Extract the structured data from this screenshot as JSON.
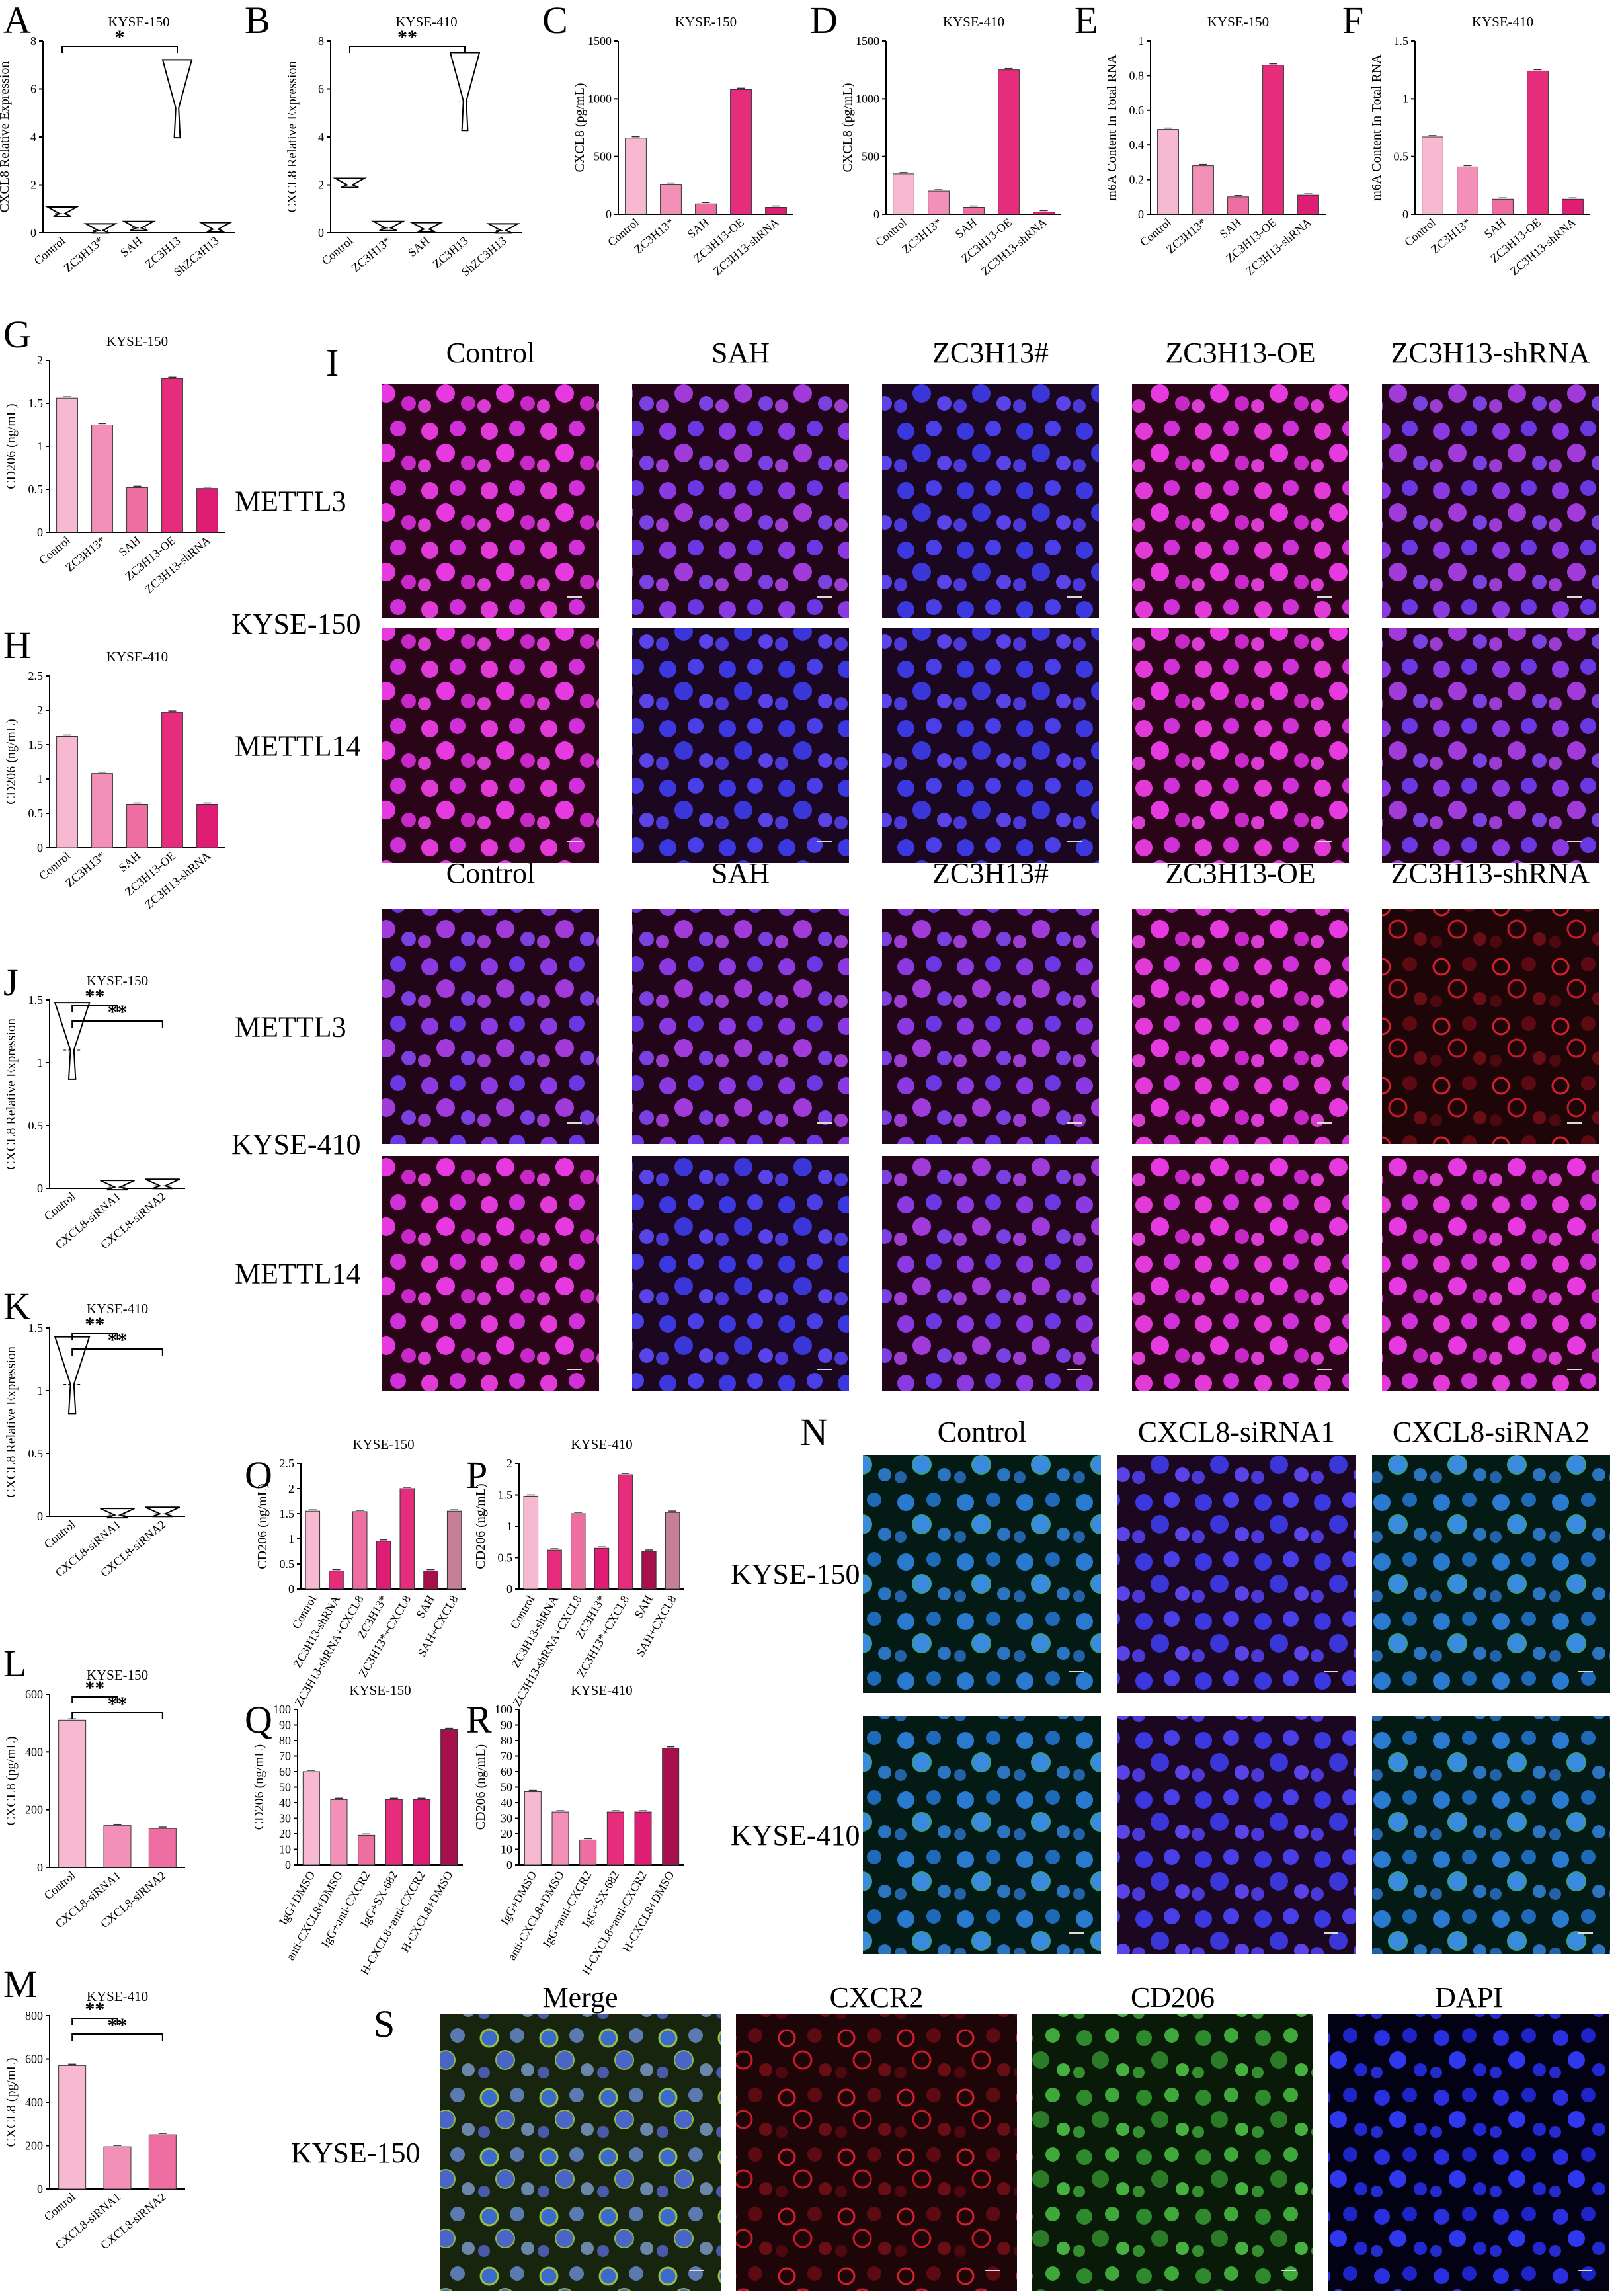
{
  "figure": {
    "background": "#ffffff"
  },
  "colors": {
    "control": "#f7b8d2",
    "pink2": "#f390b8",
    "pink3": "#ee6ea2",
    "pink_hot": "#e62d7b",
    "magenta": "#e01d74",
    "dark_rose": "#a8104d",
    "mauve": "#c58098",
    "micro_bg": "#2a0510",
    "nucleus_blue": "#3a3ae8",
    "nucleus_magenta": "#e63ad6",
    "membrane_red": "#e8202a",
    "fitc_green": "#3fbf4a"
  },
  "chart_data": [
    {
      "id": "A",
      "type": "violin",
      "title": "KYSE-150",
      "ylabel": "CXCL8 Relative Expression",
      "categories": [
        "Control",
        "ZC3H13*",
        "SAH",
        "ZC3H13",
        "ShZC3H13"
      ],
      "values": [
        0.8,
        0.1,
        0.2,
        5.2,
        0.15
      ],
      "ylim": [
        0,
        8
      ],
      "yticks": [
        0,
        2,
        4,
        6,
        8
      ],
      "significance": [
        {
          "from": 0,
          "to": 3,
          "label": "*"
        }
      ]
    },
    {
      "id": "B",
      "type": "violin",
      "title": "KYSE-410",
      "ylabel": "CXCL8 Relative Expression",
      "categories": [
        "Control",
        "ZC3H13*",
        "SAH",
        "ZC3H13",
        "ShZC3H13"
      ],
      "values": [
        2.0,
        0.2,
        0.15,
        5.5,
        0.1
      ],
      "ylim": [
        0,
        8
      ],
      "yticks": [
        0,
        2,
        4,
        6,
        8
      ],
      "significance": [
        {
          "from": 0,
          "to": 3,
          "label": "**"
        }
      ]
    },
    {
      "id": "C",
      "type": "bar",
      "title": "KYSE-150",
      "ylabel": "CXCL8 (pg/mL)",
      "categories": [
        "Control",
        "ZC3H13*",
        "SAH",
        "ZC3H13-OE",
        "ZC3H13-shRNA"
      ],
      "values": [
        660,
        260,
        90,
        1080,
        60
      ],
      "ylim": [
        0,
        1500
      ],
      "yticks": [
        0,
        500,
        1000,
        1500
      ]
    },
    {
      "id": "D",
      "type": "bar",
      "title": "KYSE-410",
      "ylabel": "CXCL8 (pg/mL)",
      "categories": [
        "Control",
        "ZC3H13*",
        "SAH",
        "ZC3H13-OE",
        "ZC3H13-shRNA"
      ],
      "values": [
        350,
        200,
        60,
        1250,
        20
      ],
      "ylim": [
        0,
        1500
      ],
      "yticks": [
        0,
        500,
        1000,
        1500
      ]
    },
    {
      "id": "E",
      "type": "bar",
      "title": "KYSE-150",
      "ylabel": "m6A Content In Total RNA",
      "categories": [
        "Control",
        "ZC3H13*",
        "SAH",
        "ZC3H13-OE",
        "ZC3H13-shRNA"
      ],
      "values": [
        0.49,
        0.28,
        0.1,
        0.86,
        0.11
      ],
      "ylim": [
        0,
        1.0
      ],
      "yticks": [
        0.0,
        0.2,
        0.4,
        0.6,
        0.8,
        1.0
      ]
    },
    {
      "id": "F",
      "type": "bar",
      "title": "KYSE-410",
      "ylabel": "m6A Content In Total RNA",
      "categories": [
        "Control",
        "ZC3H13*",
        "SAH",
        "ZC3H13-OE",
        "ZC3H13-shRNA"
      ],
      "values": [
        0.67,
        0.41,
        0.13,
        1.24,
        0.13
      ],
      "ylim": [
        0,
        1.5
      ],
      "yticks": [
        0.0,
        0.5,
        1.0,
        1.5
      ]
    },
    {
      "id": "G",
      "type": "bar",
      "title": "KYSE-150",
      "ylabel": "CD206 (ng/mL)",
      "categories": [
        "Control",
        "ZC3H13*",
        "SAH",
        "ZC3H13-OE",
        "ZC3H13-shRNA"
      ],
      "values": [
        1.56,
        1.25,
        0.52,
        1.79,
        0.51
      ],
      "ylim": [
        0,
        2.0
      ],
      "yticks": [
        0.0,
        0.5,
        1.0,
        1.5,
        2.0
      ]
    },
    {
      "id": "H",
      "type": "bar",
      "title": "KYSE-410",
      "ylabel": "CD206 (ng/mL)",
      "categories": [
        "Control",
        "ZC3H13*",
        "SAH",
        "ZC3H13-OE",
        "ZC3H13-shRNA"
      ],
      "values": [
        1.62,
        1.08,
        0.63,
        1.97,
        0.63
      ],
      "ylim": [
        0,
        2.5
      ],
      "yticks": [
        0.0,
        0.5,
        1.0,
        1.5,
        2.0,
        2.5
      ]
    },
    {
      "id": "J",
      "type": "violin",
      "title": "KYSE-150",
      "ylabel": "CXCL8 Relative Expression",
      "categories": [
        "Control",
        "CXCL8-siRNA1",
        "CXCL8-siRNA2"
      ],
      "values": [
        1.1,
        0.01,
        0.02
      ],
      "ylim": [
        0,
        1.5
      ],
      "yticks": [
        0.0,
        0.5,
        1.0,
        1.5
      ],
      "significance": [
        {
          "from": 0,
          "to": 1,
          "label": "**"
        },
        {
          "from": 0,
          "to": 2,
          "label": "**"
        }
      ]
    },
    {
      "id": "K",
      "type": "violin",
      "title": "KYSE-410",
      "ylabel": "CXCL8 Relative Expression",
      "categories": [
        "Control",
        "CXCL8-siRNA1",
        "CXCL8-siRNA2"
      ],
      "values": [
        1.05,
        0.01,
        0.02
      ],
      "ylim": [
        0,
        1.5
      ],
      "yticks": [
        0.0,
        0.5,
        1.0,
        1.5
      ],
      "significance": [
        {
          "from": 0,
          "to": 1,
          "label": "**"
        },
        {
          "from": 0,
          "to": 2,
          "label": "**"
        }
      ]
    },
    {
      "id": "L",
      "type": "bar",
      "title": "KYSE-150",
      "ylabel": "CXCL8 (pg/mL)",
      "categories": [
        "Control",
        "CXCL8-siRNA1",
        "CXCL8-siRNA2"
      ],
      "values": [
        510,
        145,
        135
      ],
      "ylim": [
        0,
        600
      ],
      "yticks": [
        0,
        200,
        400,
        600
      ],
      "significance": [
        {
          "from": 0,
          "to": 1,
          "label": "**"
        },
        {
          "from": 0,
          "to": 2,
          "label": "**"
        }
      ]
    },
    {
      "id": "M",
      "type": "bar",
      "title": "KYSE-410",
      "ylabel": "CXCL8 (pg/mL)",
      "categories": [
        "Control",
        "CXCL8-siRNA1",
        "CXCL8-siRNA2"
      ],
      "values": [
        570,
        195,
        250
      ],
      "ylim": [
        0,
        800
      ],
      "yticks": [
        0,
        200,
        400,
        600,
        800
      ],
      "significance": [
        {
          "from": 0,
          "to": 1,
          "label": "**"
        },
        {
          "from": 0,
          "to": 2,
          "label": "**"
        }
      ]
    },
    {
      "id": "O",
      "type": "bar",
      "title": "KYSE-150",
      "ylabel": "CD206 (ng/mL)",
      "categories": [
        "Control",
        "ZC3H13-shRNA",
        "ZC3H13-shRNA+CXCL8",
        "ZC3H13*",
        "ZC3H13*+CXCL8",
        "SAH",
        "SAH+CXCL8"
      ],
      "values": [
        1.55,
        0.36,
        1.54,
        0.95,
        2.0,
        0.36,
        1.55
      ],
      "ylim": [
        0,
        2.5
      ],
      "yticks": [
        0.0,
        0.5,
        1.0,
        1.5,
        2.0,
        2.5
      ]
    },
    {
      "id": "P",
      "type": "bar",
      "title": "KYSE-410",
      "ylabel": "CD206 (ng/mL)",
      "categories": [
        "Control",
        "ZC3H13-shRNA",
        "ZC3H13-shRNA+CXCL8",
        "ZC3H13*",
        "ZC3H13*+CXCL8",
        "SAH",
        "SAH+CXCL8"
      ],
      "values": [
        1.48,
        0.62,
        1.2,
        0.65,
        1.82,
        0.6,
        1.22
      ],
      "ylim": [
        0,
        2.0
      ],
      "yticks": [
        0.0,
        0.5,
        1.0,
        1.5,
        2.0
      ]
    },
    {
      "id": "Q",
      "type": "bar",
      "title": "KYSE-150",
      "ylabel": "CD206 (ng/mL)",
      "categories": [
        "IgG+DMSO",
        "anti-CXCL8+DMSO",
        "IgG+anti-CXCR2",
        "IgG+SX-682",
        "H-CXCL8+anti-CXCR2",
        "H-CXCL8+DMSO"
      ],
      "values": [
        60,
        42,
        19,
        42,
        42,
        87
      ],
      "ylim": [
        0,
        100
      ],
      "yticks": [
        0,
        10,
        20,
        30,
        40,
        50,
        60,
        70,
        80,
        90,
        100
      ]
    },
    {
      "id": "R",
      "type": "bar",
      "title": "KYSE-410",
      "ylabel": "CD206 (ng/mL)",
      "categories": [
        "IgG+DMSO",
        "anti-CXCL8+DMSO",
        "IgG+anti-CXCR2",
        "IgG+SX-682",
        "H-CXCL8+anti-CXCR2",
        "H-CXCL8+DMSO"
      ],
      "values": [
        47,
        34,
        16,
        34,
        34,
        75
      ],
      "ylim": [
        0,
        100
      ],
      "yticks": [
        0,
        10,
        20,
        30,
        40,
        50,
        60,
        70,
        80,
        90,
        100
      ]
    }
  ],
  "panel_I": {
    "letter": "I",
    "columns": [
      "Control",
      "SAH",
      "ZC3H13#",
      "ZC3H13-OE",
      "ZC3H13-shRNA"
    ],
    "cell_lines": [
      "KYSE-150",
      "KYSE-410"
    ],
    "rows": [
      "METTL3",
      "METTL14"
    ]
  },
  "panel_N": {
    "letter": "N",
    "columns": [
      "Control",
      "CXCL8-siRNA1",
      "CXCL8-siRNA2"
    ],
    "rows": [
      "KYSE-150",
      "KYSE-410"
    ]
  },
  "panel_S": {
    "letter": "S",
    "columns": [
      "Merge",
      "CXCR2",
      "CD206",
      "DAPI"
    ],
    "row": "KYSE-150"
  }
}
